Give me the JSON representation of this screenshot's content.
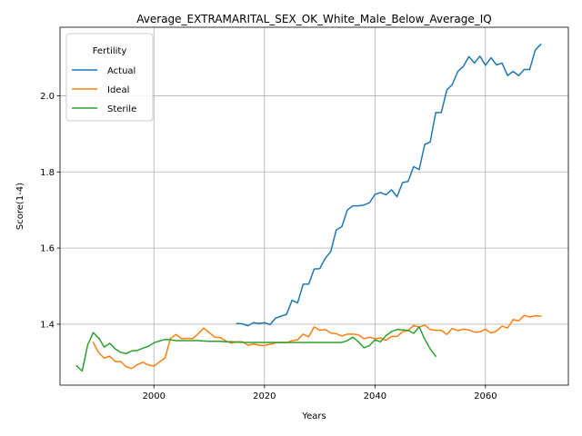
{
  "chart_data": {
    "type": "line",
    "title": "Average_EXTRAMARITAL_SEX_OK_White_Male_Below_Average_IQ",
    "xlabel": "Years",
    "ylabel": "Score(1-4)",
    "xlim": [
      1983,
      2075
    ],
    "ylim": [
      1.24,
      2.18
    ],
    "xticks": [
      2000,
      2020,
      2040,
      2060
    ],
    "yticks": [
      1.4,
      1.6,
      1.8,
      2.0
    ],
    "grid": true,
    "legend": {
      "title": "Fertility",
      "placement": "upper-left"
    },
    "series": [
      {
        "name": "Actual",
        "color": "#1f77b4",
        "x": [
          2015,
          2016,
          2017,
          2018,
          2019,
          2020,
          2021,
          2022,
          2023,
          2024,
          2025,
          2026,
          2027,
          2028,
          2029,
          2030,
          2031,
          2032,
          2033,
          2034,
          2035,
          2036,
          2037,
          2038,
          2039,
          2040,
          2041,
          2042,
          2043,
          2044,
          2045,
          2046,
          2047,
          2048,
          2049,
          2050,
          2051,
          2052,
          2053,
          2054,
          2055,
          2056,
          2057,
          2058,
          2059,
          2060,
          2061,
          2062,
          2063,
          2064,
          2065,
          2066,
          2067,
          2068,
          2069,
          2070
        ],
        "y": [
          1.402,
          1.401,
          1.396,
          1.404,
          1.402,
          1.404,
          1.399,
          1.416,
          1.421,
          1.426,
          1.463,
          1.456,
          1.505,
          1.505,
          1.545,
          1.546,
          1.573,
          1.591,
          1.648,
          1.656,
          1.7,
          1.711,
          1.711,
          1.713,
          1.719,
          1.741,
          1.746,
          1.74,
          1.753,
          1.735,
          1.772,
          1.775,
          1.814,
          1.806,
          1.872,
          1.879,
          1.956,
          1.956,
          2.015,
          2.03,
          2.064,
          2.077,
          2.103,
          2.086,
          2.104,
          2.08,
          2.1,
          2.081,
          2.086,
          2.053,
          2.064,
          2.053,
          2.069,
          2.069,
          2.12,
          2.135
        ]
      },
      {
        "name": "Ideal",
        "color": "#ff7f0e",
        "x": [
          1989,
          1990,
          1991,
          1992,
          1993,
          1994,
          1995,
          1996,
          1997,
          1998,
          1999,
          2000,
          2001,
          2002,
          2003,
          2004,
          2005,
          2006,
          2007,
          2008,
          2009,
          2010,
          2011,
          2012,
          2013,
          2014,
          2015,
          2016,
          2017,
          2018,
          2019,
          2020,
          2021,
          2022,
          2023,
          2024,
          2025,
          2026,
          2027,
          2028,
          2029,
          2030,
          2031,
          2032,
          2033,
          2034,
          2035,
          2036,
          2037,
          2038,
          2039,
          2040,
          2041,
          2042,
          2043,
          2044,
          2045,
          2046,
          2047,
          2048,
          2049,
          2050,
          2051,
          2052,
          2053,
          2054,
          2055,
          2056,
          2057,
          2058,
          2059,
          2060,
          2061,
          2062,
          2063,
          2064,
          2065,
          2066,
          2067,
          2068,
          2069,
          2070
        ],
        "y": [
          1.352,
          1.325,
          1.311,
          1.316,
          1.302,
          1.302,
          1.288,
          1.284,
          1.294,
          1.3,
          1.293,
          1.29,
          1.301,
          1.311,
          1.363,
          1.373,
          1.362,
          1.363,
          1.362,
          1.375,
          1.39,
          1.378,
          1.366,
          1.365,
          1.356,
          1.35,
          1.354,
          1.354,
          1.345,
          1.348,
          1.345,
          1.344,
          1.347,
          1.351,
          1.352,
          1.351,
          1.357,
          1.359,
          1.374,
          1.367,
          1.393,
          1.384,
          1.386,
          1.377,
          1.375,
          1.369,
          1.374,
          1.374,
          1.372,
          1.362,
          1.366,
          1.362,
          1.364,
          1.358,
          1.368,
          1.368,
          1.38,
          1.383,
          1.397,
          1.392,
          1.398,
          1.386,
          1.384,
          1.384,
          1.373,
          1.389,
          1.383,
          1.387,
          1.385,
          1.379,
          1.38,
          1.387,
          1.377,
          1.382,
          1.395,
          1.39,
          1.412,
          1.409,
          1.423,
          1.419,
          1.422,
          1.421
        ]
      },
      {
        "name": "Sterile",
        "color": "#2ca02c",
        "x": [
          1986,
          1987,
          1988,
          1989,
          1990,
          1991,
          1992,
          1993,
          1994,
          1995,
          1996,
          1997,
          1998,
          1999,
          2000,
          2001,
          2002,
          2003,
          2004,
          2005,
          2006,
          2007,
          2008,
          2009,
          2010,
          2011,
          2012,
          2013,
          2014,
          2015,
          2016,
          2017,
          2018,
          2019,
          2020,
          2021,
          2022,
          2023,
          2024,
          2025,
          2026,
          2027,
          2028,
          2029,
          2030,
          2031,
          2032,
          2033,
          2034,
          2035,
          2036,
          2037,
          2038,
          2039,
          2040,
          2041,
          2042,
          2043,
          2044,
          2045,
          2046,
          2047,
          2048,
          2049,
          2050,
          2051
        ],
        "y": [
          1.291,
          1.277,
          1.345,
          1.378,
          1.364,
          1.34,
          1.35,
          1.335,
          1.326,
          1.323,
          1.33,
          1.331,
          1.337,
          1.342,
          1.351,
          1.356,
          1.36,
          1.359,
          1.357,
          1.357,
          1.357,
          1.357,
          1.357,
          1.356,
          1.355,
          1.355,
          1.355,
          1.354,
          1.354,
          1.353,
          1.352,
          1.352,
          1.352,
          1.352,
          1.352,
          1.352,
          1.352,
          1.352,
          1.352,
          1.352,
          1.352,
          1.352,
          1.352,
          1.352,
          1.352,
          1.352,
          1.352,
          1.352,
          1.352,
          1.357,
          1.366,
          1.354,
          1.338,
          1.344,
          1.359,
          1.354,
          1.37,
          1.381,
          1.386,
          1.385,
          1.384,
          1.376,
          1.393,
          1.361,
          1.335,
          1.316
        ]
      }
    ]
  }
}
